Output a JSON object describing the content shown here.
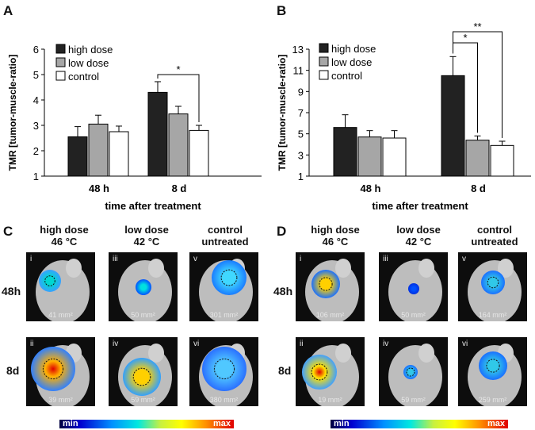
{
  "chart_data": [
    {
      "panel": "A",
      "type": "bar",
      "ylabel": "TMR [tumor-muscle-ratio]",
      "xlabel": "time after treatment",
      "ylim": [
        1,
        6
      ],
      "yticks": [
        "1",
        "2",
        "3",
        "4",
        "5",
        "6"
      ],
      "categories": [
        "48 h",
        "8 d"
      ],
      "series": [
        {
          "name": "high dose",
          "color": "#222222",
          "values": [
            2.55,
            4.3
          ],
          "errors": [
            0.4,
            0.42
          ]
        },
        {
          "name": "low dose",
          "color": "#a6a6a6",
          "values": [
            3.05,
            3.45
          ],
          "errors": [
            0.35,
            0.3
          ]
        },
        {
          "name": "control",
          "color": "#ffffff",
          "values": [
            2.75,
            2.8
          ],
          "errors": [
            0.22,
            0.2
          ]
        }
      ],
      "significance": [
        {
          "category": "8 d",
          "from": "high dose",
          "to": "control",
          "label": "*"
        }
      ]
    },
    {
      "panel": "B",
      "type": "bar",
      "ylabel": "TMR [tumor-muscle-ratio]",
      "xlabel": "time after treatment",
      "ylim": [
        1,
        13
      ],
      "yticks": [
        "1",
        "3",
        "5",
        "7",
        "9",
        "11",
        "13"
      ],
      "categories": [
        "48 h",
        "8 d"
      ],
      "series": [
        {
          "name": "high dose",
          "color": "#222222",
          "values": [
            5.6,
            10.5
          ],
          "errors": [
            1.2,
            1.8
          ]
        },
        {
          "name": "low dose",
          "color": "#a6a6a6",
          "values": [
            4.7,
            4.4
          ],
          "errors": [
            0.6,
            0.4
          ]
        },
        {
          "name": "control",
          "color": "#ffffff",
          "values": [
            4.6,
            3.9
          ],
          "errors": [
            0.7,
            0.4
          ]
        }
      ],
      "significance": [
        {
          "category": "8 d",
          "from": "high dose",
          "to": "low dose",
          "label": "*"
        },
        {
          "category": "8 d",
          "from": "high dose",
          "to": "control",
          "label": "**"
        }
      ]
    }
  ],
  "imaging": [
    {
      "panel": "C",
      "columns": [
        {
          "line1": "high dose",
          "line2": "46 °C"
        },
        {
          "line1": "low dose",
          "line2": "42 °C"
        },
        {
          "line1": "control",
          "line2": "untreated"
        }
      ],
      "rows": [
        "48h",
        "8d"
      ],
      "tiles": [
        {
          "roman": "i",
          "area": "41 mm²"
        },
        {
          "roman": "iii",
          "area": "50 mm²"
        },
        {
          "roman": "v",
          "area": "301 mm²"
        },
        {
          "roman": "ii",
          "area": "39 mm²"
        },
        {
          "roman": "iv",
          "area": "59 mm²"
        },
        {
          "roman": "vi",
          "area": "380 mm²"
        }
      ],
      "scale": {
        "min": "min",
        "max": "max"
      }
    },
    {
      "panel": "D",
      "columns": [
        {
          "line1": "high dose",
          "line2": "46 °C"
        },
        {
          "line1": "low dose",
          "line2": "42 °C"
        },
        {
          "line1": "control",
          "line2": "untreated"
        }
      ],
      "rows": [
        "48h",
        "8d"
      ],
      "tiles": [
        {
          "roman": "i",
          "area": "106 mm²"
        },
        {
          "roman": "iii",
          "area": "50 mm²"
        },
        {
          "roman": "v",
          "area": "164 mm²"
        },
        {
          "roman": "ii",
          "area": "19 mm²"
        },
        {
          "roman": "iv",
          "area": "59 mm²"
        },
        {
          "roman": "vi",
          "area": "259 mm²"
        }
      ],
      "scale": {
        "min": "min",
        "max": "max"
      }
    }
  ]
}
